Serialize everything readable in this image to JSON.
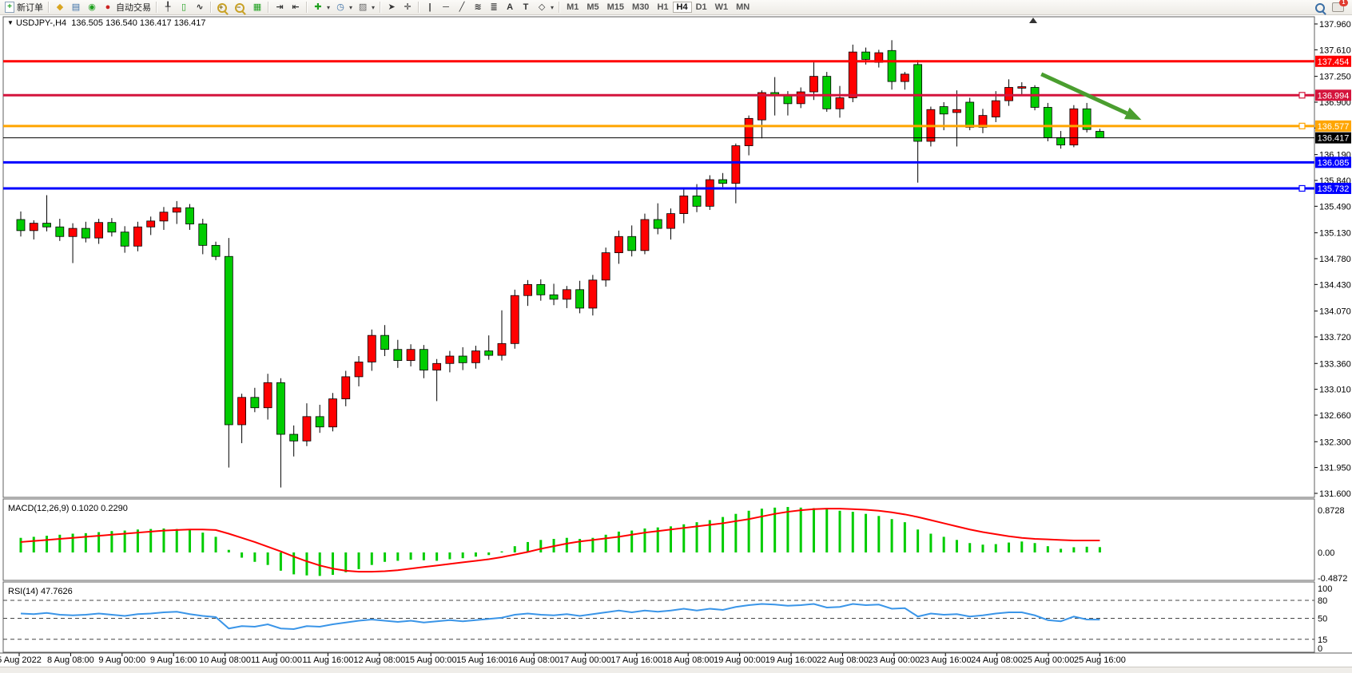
{
  "toolbar": {
    "new_order_label": "新订单",
    "autotrading_label": "自动交易",
    "timeframes": [
      "M1",
      "M5",
      "M15",
      "M30",
      "H1",
      "H4",
      "D1",
      "W1",
      "MN"
    ],
    "active_timeframe": "H4",
    "notification_count": "1",
    "icons": [
      "new-order-icon",
      "mql-icon",
      "market-watch-icon",
      "signals-icon",
      "autotrading-icon",
      "bar-chart-icon",
      "candlestick-chart-icon",
      "line-chart-icon",
      "zoom-in-icon",
      "zoom-out-icon",
      "tile-windows-icon",
      "chart-shift-icon",
      "chart-autoscroll-icon",
      "indicators-icon",
      "periods-icon",
      "templates-icon",
      "cursor-icon",
      "crosshair-icon",
      "vertical-line-icon",
      "horizontal-line-icon",
      "trendline-icon",
      "channel-icon",
      "fibonacci-icon",
      "text-icon",
      "label-icon",
      "shapes-icon",
      "search-icon",
      "notifications-icon"
    ]
  },
  "chart": {
    "dropdown_marker": "▼",
    "symbol_ohlc_line": "USDJPY-,H4  136.505 136.540 136.417 136.417"
  },
  "indicators_labels": {
    "macd_label": "MACD(12,26,9) 0.1020 0.2290",
    "rsi_label": "RSI(14) 47.7626"
  },
  "price_axis": {
    "ticks": [
      "137.960",
      "137.610",
      "137.250",
      "136.900",
      "136.550",
      "136.190",
      "135.840",
      "135.490",
      "135.130",
      "134.780",
      "134.430",
      "134.070",
      "133.720",
      "133.360",
      "133.010",
      "132.660",
      "132.300",
      "131.950",
      "131.600"
    ]
  },
  "macd_axis": {
    "labels": [
      "0.8728",
      "0.00",
      "-0.4872"
    ],
    "values": [
      0.8728,
      0,
      -0.4872
    ]
  },
  "rsi_axis": {
    "labels": [
      "100",
      "80",
      "50",
      "15",
      "0"
    ],
    "values": [
      100,
      80,
      50,
      15,
      0
    ],
    "dashed_levels": [
      80,
      50,
      15
    ]
  },
  "time_axis": {
    "labels": [
      "5 Aug 2022",
      "8 Aug 08:00",
      "9 Aug 00:00",
      "9 Aug 16:00",
      "10 Aug 08:00",
      "11 Aug 00:00",
      "11 Aug 16:00",
      "12 Aug 08:00",
      "15 Aug 00:00",
      "15 Aug 16:00",
      "16 Aug 08:00",
      "17 Aug 00:00",
      "17 Aug 16:00",
      "18 Aug 08:00",
      "19 Aug 00:00",
      "19 Aug 16:00",
      "22 Aug 08:00",
      "23 Aug 00:00",
      "23 Aug 16:00",
      "24 Aug 08:00",
      "25 Aug 00:00",
      "25 Aug 16:00"
    ]
  },
  "colors": {
    "up_candle": "#ff0000",
    "down_candle": "#00cc00",
    "wick": "#000000",
    "macd_histogram": "#00cc00",
    "macd_signal": "#ff0000",
    "rsi_line": "#3a95e8",
    "arrow": "#4a9e2f",
    "badge_text": "#ffffff",
    "panel_border": "#5f5f5f"
  },
  "chart_data": {
    "type": "candlestick",
    "symbol": "USDJPY-",
    "timeframe": "H4",
    "current_bar": {
      "open": 136.505,
      "high": 136.54,
      "low": 136.417,
      "close": 136.417
    },
    "note": "red body = bullish, green body = bearish",
    "price_range": [
      131.6,
      137.96
    ],
    "candles": [
      [
        135.31,
        135.42,
        135.08,
        135.16
      ],
      [
        135.16,
        135.3,
        135.04,
        135.26
      ],
      [
        135.26,
        135.64,
        135.15,
        135.21
      ],
      [
        135.21,
        135.32,
        135.02,
        135.08
      ],
      [
        135.08,
        135.26,
        134.72,
        135.19
      ],
      [
        135.19,
        135.28,
        135.0,
        135.06
      ],
      [
        135.06,
        135.32,
        134.98,
        135.27
      ],
      [
        135.27,
        135.33,
        135.08,
        135.14
      ],
      [
        135.14,
        135.22,
        134.86,
        134.95
      ],
      [
        134.95,
        135.28,
        134.88,
        135.21
      ],
      [
        135.21,
        135.35,
        135.1,
        135.29
      ],
      [
        135.29,
        135.48,
        135.17,
        135.41
      ],
      [
        135.41,
        135.56,
        135.25,
        135.47
      ],
      [
        135.47,
        135.52,
        135.17,
        135.25
      ],
      [
        135.25,
        135.32,
        134.84,
        134.96
      ],
      [
        134.96,
        135.01,
        134.76,
        134.81
      ],
      [
        134.81,
        135.06,
        131.95,
        132.53
      ],
      [
        132.53,
        132.95,
        132.28,
        132.9
      ],
      [
        132.9,
        133.03,
        132.7,
        132.76
      ],
      [
        132.76,
        133.22,
        132.6,
        133.1
      ],
      [
        133.1,
        133.16,
        131.68,
        132.4
      ],
      [
        132.4,
        132.52,
        132.1,
        132.31
      ],
      [
        132.31,
        132.82,
        132.24,
        132.64
      ],
      [
        132.64,
        132.8,
        132.42,
        132.5
      ],
      [
        132.5,
        132.96,
        132.44,
        132.88
      ],
      [
        132.88,
        133.26,
        132.78,
        133.18
      ],
      [
        133.18,
        133.46,
        133.05,
        133.38
      ],
      [
        133.38,
        133.82,
        133.26,
        133.74
      ],
      [
        133.74,
        133.88,
        133.46,
        133.55
      ],
      [
        133.55,
        133.68,
        133.3,
        133.4
      ],
      [
        133.4,
        133.62,
        133.32,
        133.55
      ],
      [
        133.55,
        133.61,
        133.16,
        133.27
      ],
      [
        133.27,
        133.42,
        132.85,
        133.36
      ],
      [
        133.36,
        133.53,
        133.24,
        133.46
      ],
      [
        133.46,
        133.58,
        133.27,
        133.37
      ],
      [
        133.37,
        133.6,
        133.29,
        133.53
      ],
      [
        133.53,
        133.74,
        133.41,
        133.47
      ],
      [
        133.47,
        134.08,
        133.4,
        133.63
      ],
      [
        133.63,
        134.36,
        133.56,
        134.28
      ],
      [
        134.28,
        134.49,
        134.14,
        134.43
      ],
      [
        134.43,
        134.5,
        134.21,
        134.29
      ],
      [
        134.29,
        134.44,
        134.15,
        134.23
      ],
      [
        134.23,
        134.41,
        134.11,
        134.36
      ],
      [
        134.36,
        134.48,
        134.04,
        134.11
      ],
      [
        134.11,
        134.56,
        134.01,
        134.49
      ],
      [
        134.49,
        134.93,
        134.4,
        134.86
      ],
      [
        134.86,
        135.16,
        134.71,
        135.08
      ],
      [
        135.08,
        135.23,
        134.81,
        134.89
      ],
      [
        134.89,
        135.39,
        134.84,
        135.31
      ],
      [
        135.31,
        135.53,
        135.11,
        135.19
      ],
      [
        135.19,
        135.46,
        135.04,
        135.39
      ],
      [
        135.39,
        135.73,
        135.26,
        135.63
      ],
      [
        135.63,
        135.79,
        135.41,
        135.49
      ],
      [
        135.49,
        135.91,
        135.44,
        135.85
      ],
      [
        135.85,
        135.94,
        135.75,
        135.8
      ],
      [
        135.8,
        136.34,
        135.53,
        136.31
      ],
      [
        136.31,
        136.72,
        136.18,
        136.68
      ],
      [
        136.66,
        137.06,
        136.41,
        137.03
      ],
      [
        137.03,
        137.24,
        136.72,
        136.99
      ],
      [
        136.99,
        137.05,
        136.72,
        136.88
      ],
      [
        136.88,
        137.1,
        136.82,
        137.04
      ],
      [
        137.04,
        137.44,
        136.93,
        137.25
      ],
      [
        137.25,
        137.31,
        136.77,
        136.81
      ],
      [
        136.81,
        137.12,
        136.69,
        136.96
      ],
      [
        136.96,
        137.68,
        136.9,
        137.58
      ],
      [
        137.58,
        137.64,
        137.41,
        137.48
      ],
      [
        137.44,
        137.61,
        137.37,
        137.57
      ],
      [
        137.6,
        137.74,
        137.07,
        137.18
      ],
      [
        137.18,
        137.31,
        137.07,
        137.28
      ],
      [
        137.41,
        137.47,
        135.81,
        136.37
      ],
      [
        136.37,
        136.84,
        136.3,
        136.8
      ],
      [
        136.84,
        136.9,
        136.52,
        136.74
      ],
      [
        136.76,
        137.06,
        136.3,
        136.8
      ],
      [
        136.9,
        136.96,
        136.52,
        136.56
      ],
      [
        136.56,
        136.81,
        136.48,
        136.72
      ],
      [
        136.7,
        137.05,
        136.63,
        136.92
      ],
      [
        136.92,
        137.21,
        136.85,
        137.1
      ],
      [
        137.09,
        137.17,
        136.99,
        137.11
      ],
      [
        137.1,
        137.13,
        136.79,
        136.83
      ],
      [
        136.83,
        136.89,
        136.37,
        136.42
      ],
      [
        136.42,
        136.51,
        136.27,
        136.32
      ],
      [
        136.32,
        136.86,
        136.29,
        136.81
      ],
      [
        136.81,
        136.89,
        136.49,
        136.53
      ],
      [
        136.505,
        136.54,
        136.417,
        136.417
      ]
    ],
    "hlines": [
      {
        "price": 137.454,
        "label": "137.454",
        "color": "#ff0000",
        "width": 3,
        "handle": false
      },
      {
        "price": 136.994,
        "label": "136.994",
        "color": "#d4143c",
        "width": 3,
        "handle": true
      },
      {
        "price": 136.577,
        "label": "136.577",
        "color": "#ffa500",
        "width": 3,
        "handle": true
      },
      {
        "price": 136.417,
        "label": "136.417",
        "color": "#000000",
        "width": 1,
        "handle": false
      },
      {
        "price": 136.085,
        "label": "136.085",
        "color": "#0000ff",
        "width": 3,
        "handle": false
      },
      {
        "price": 135.732,
        "label": "135.732",
        "color": "#0000ff",
        "width": 3,
        "handle": true
      }
    ],
    "trend_arrow": {
      "start": {
        "bar": 78.5,
        "price": 137.28
      },
      "end": {
        "bar": 86.2,
        "price": 136.66
      }
    },
    "indicators": {
      "macd": {
        "params": "12,26,9",
        "current": {
          "macd": 0.102,
          "signal": 0.229
        },
        "range": [
          -0.4872,
          0.8728
        ],
        "histogram": [
          0.28,
          0.3,
          0.32,
          0.34,
          0.36,
          0.37,
          0.39,
          0.41,
          0.42,
          0.44,
          0.45,
          0.46,
          0.45,
          0.43,
          0.38,
          0.3,
          0.05,
          -0.1,
          -0.18,
          -0.24,
          -0.35,
          -0.42,
          -0.44,
          -0.45,
          -0.43,
          -0.38,
          -0.32,
          -0.24,
          -0.18,
          -0.16,
          -0.14,
          -0.15,
          -0.16,
          -0.13,
          -0.11,
          -0.08,
          -0.05,
          0.02,
          0.12,
          0.2,
          0.24,
          0.26,
          0.28,
          0.26,
          0.28,
          0.34,
          0.4,
          0.42,
          0.46,
          0.48,
          0.5,
          0.54,
          0.58,
          0.62,
          0.68,
          0.74,
          0.8,
          0.84,
          0.86,
          0.872,
          0.86,
          0.85,
          0.83,
          0.8,
          0.78,
          0.74,
          0.7,
          0.64,
          0.58,
          0.44,
          0.36,
          0.3,
          0.24,
          0.18,
          0.15,
          0.16,
          0.19,
          0.21,
          0.18,
          0.12,
          0.07,
          0.1,
          0.11,
          0.102
        ],
        "signal": [
          0.2,
          0.22,
          0.24,
          0.26,
          0.28,
          0.3,
          0.32,
          0.34,
          0.36,
          0.38,
          0.4,
          0.42,
          0.43,
          0.44,
          0.44,
          0.43,
          0.36,
          0.28,
          0.2,
          0.11,
          0.02,
          -0.08,
          -0.17,
          -0.25,
          -0.31,
          -0.35,
          -0.37,
          -0.37,
          -0.36,
          -0.34,
          -0.31,
          -0.28,
          -0.25,
          -0.22,
          -0.19,
          -0.16,
          -0.13,
          -0.09,
          -0.04,
          0.01,
          0.07,
          0.12,
          0.17,
          0.21,
          0.24,
          0.27,
          0.3,
          0.34,
          0.38,
          0.41,
          0.44,
          0.47,
          0.5,
          0.53,
          0.56,
          0.6,
          0.64,
          0.69,
          0.74,
          0.78,
          0.81,
          0.83,
          0.84,
          0.84,
          0.83,
          0.82,
          0.8,
          0.77,
          0.73,
          0.68,
          0.62,
          0.56,
          0.5,
          0.44,
          0.39,
          0.35,
          0.31,
          0.28,
          0.26,
          0.25,
          0.24,
          0.23,
          0.23,
          0.229
        ]
      },
      "rsi": {
        "period": 14,
        "current": 47.7626,
        "levels": [
          80,
          50,
          15
        ],
        "values": [
          58,
          57,
          59,
          56,
          55,
          56,
          58,
          56,
          54,
          57,
          58,
          60,
          61,
          57,
          54,
          52,
          33,
          37,
          36,
          40,
          33,
          32,
          37,
          36,
          40,
          43,
          46,
          48,
          46,
          44,
          46,
          43,
          45,
          47,
          45,
          47,
          49,
          51,
          56,
          58,
          56,
          55,
          57,
          54,
          57,
          60,
          63,
          60,
          63,
          61,
          63,
          66,
          63,
          66,
          64,
          69,
          72,
          74,
          73,
          71,
          72,
          74,
          68,
          69,
          74,
          72,
          73,
          66,
          67,
          53,
          58,
          56,
          57,
          53,
          55,
          58,
          60,
          60,
          55,
          47,
          45,
          53,
          48,
          47.76
        ]
      }
    }
  }
}
